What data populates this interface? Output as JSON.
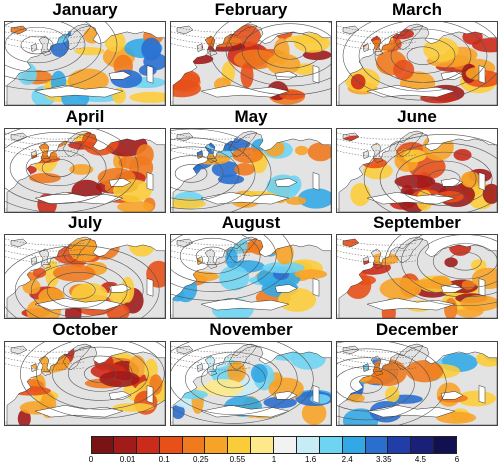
{
  "panels": [
    {
      "month": "January",
      "anomaly": "mixed"
    },
    {
      "month": "February",
      "anomaly": "dry"
    },
    {
      "month": "March",
      "anomaly": "dry"
    },
    {
      "month": "April",
      "anomaly": "dry"
    },
    {
      "month": "May",
      "anomaly": "mixed"
    },
    {
      "month": "June",
      "anomaly": "dry"
    },
    {
      "month": "July",
      "anomaly": "dry"
    },
    {
      "month": "August",
      "anomaly": "mixed"
    },
    {
      "month": "September",
      "anomaly": "dry"
    },
    {
      "month": "October",
      "anomaly": "dry"
    },
    {
      "month": "November",
      "anomaly": "wet"
    },
    {
      "month": "December",
      "anomaly": "mixed"
    }
  ],
  "colorbar": {
    "ticks": [
      "0",
      "0.01",
      "0.1",
      "0.25",
      "0.55",
      "1",
      "1.6",
      "2.4",
      "3.35",
      "4.5",
      "6"
    ],
    "colors": [
      "#7a1414",
      "#a31a1a",
      "#cc2a1a",
      "#e8501a",
      "#f07a1e",
      "#f6a328",
      "#fbcc3a",
      "#fde98a",
      "#f2f2f2",
      "#c8ecf6",
      "#6fd4f2",
      "#33a8e6",
      "#2a6fd0",
      "#213ea8",
      "#1a1f78",
      "#121050"
    ]
  },
  "map_colors": {
    "land": "#e3e3e3",
    "sea": "#ffffff",
    "coast": "#333333",
    "contour": "#555555"
  }
}
